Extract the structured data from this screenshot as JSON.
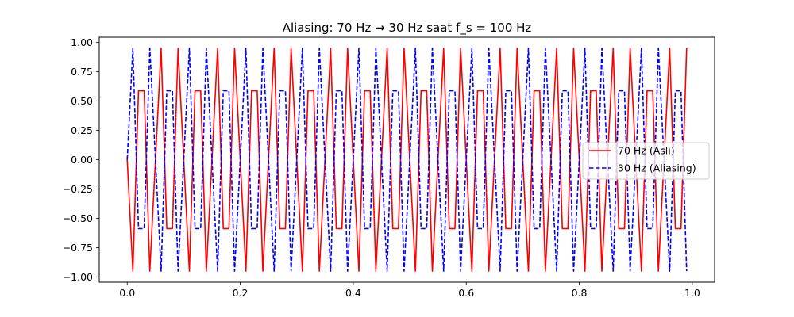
{
  "chart_data": {
    "type": "line",
    "title": "Aliasing: 70 Hz → 30 Hz saat f_s = 100 Hz",
    "xlabel": "",
    "ylabel": "",
    "xlim": [
      -0.0495,
      1.0395
    ],
    "ylim": [
      -1.045,
      1.045
    ],
    "x_ticks": [
      0.0,
      0.2,
      0.4,
      0.6,
      0.8,
      1.0
    ],
    "x_tick_labels": [
      "0.0",
      "0.2",
      "0.4",
      "0.6",
      "0.8",
      "1.0"
    ],
    "y_ticks": [
      1.0,
      0.75,
      0.5,
      0.25,
      0.0,
      -0.25,
      -0.5,
      -0.75,
      -1.0
    ],
    "y_tick_labels": [
      "1.00",
      "0.75",
      "0.50",
      "0.25",
      "0.00",
      "−0.25",
      "−0.50",
      "−0.75",
      "−1.00"
    ],
    "grid": false,
    "legend_position": "center-right",
    "x": [
      0.0,
      0.01,
      0.02,
      0.03,
      0.04,
      0.05,
      0.06,
      0.07,
      0.08,
      0.09,
      0.1,
      0.11,
      0.12,
      0.13,
      0.14,
      0.15,
      0.16,
      0.17,
      0.18,
      0.19,
      0.2,
      0.21,
      0.22,
      0.23,
      0.24,
      0.25,
      0.26,
      0.27,
      0.28,
      0.29,
      0.3,
      0.31,
      0.32,
      0.33,
      0.34,
      0.35,
      0.36,
      0.37,
      0.38,
      0.39,
      0.4,
      0.41,
      0.42,
      0.43,
      0.44,
      0.45,
      0.46,
      0.47,
      0.48,
      0.49,
      0.5,
      0.51,
      0.52,
      0.53,
      0.54,
      0.55,
      0.56,
      0.57,
      0.58,
      0.59,
      0.6,
      0.61,
      0.62,
      0.63,
      0.64,
      0.65,
      0.66,
      0.67,
      0.68,
      0.69,
      0.7,
      0.71,
      0.72,
      0.73,
      0.74,
      0.75,
      0.76,
      0.77,
      0.78,
      0.79,
      0.8,
      0.81,
      0.82,
      0.83,
      0.84,
      0.85,
      0.86,
      0.87,
      0.88,
      0.89,
      0.9,
      0.91,
      0.92,
      0.93,
      0.94,
      0.95,
      0.96,
      0.97,
      0.98,
      0.99
    ],
    "series": [
      {
        "name": "70 Hz (Asli)",
        "color": "#ff0000",
        "style": "solid",
        "values": [
          0.0,
          -0.951,
          0.588,
          0.588,
          -0.951,
          0.0,
          0.951,
          -0.588,
          -0.588,
          0.951,
          0.0,
          -0.951,
          0.588,
          0.588,
          -0.951,
          0.0,
          0.951,
          -0.588,
          -0.588,
          0.951,
          0.0,
          -0.951,
          0.588,
          0.588,
          -0.951,
          0.0,
          0.951,
          -0.588,
          -0.588,
          0.951,
          0.0,
          -0.951,
          0.588,
          0.588,
          -0.951,
          0.0,
          0.951,
          -0.588,
          -0.588,
          0.951,
          0.0,
          -0.951,
          0.588,
          0.588,
          -0.951,
          0.0,
          0.951,
          -0.588,
          -0.588,
          0.951,
          0.0,
          -0.951,
          0.588,
          0.588,
          -0.951,
          0.0,
          0.951,
          -0.588,
          -0.588,
          0.951,
          0.0,
          -0.951,
          0.588,
          0.588,
          -0.951,
          0.0,
          0.951,
          -0.588,
          -0.588,
          0.951,
          0.0,
          -0.951,
          0.588,
          0.588,
          -0.951,
          0.0,
          0.951,
          -0.588,
          -0.588,
          0.951,
          0.0,
          -0.951,
          0.588,
          0.588,
          -0.951,
          0.0,
          0.951,
          -0.588,
          -0.588,
          0.951,
          0.0,
          -0.951,
          0.588,
          0.588,
          -0.951,
          0.0,
          0.951,
          -0.588,
          -0.588,
          0.951
        ]
      },
      {
        "name": "30 Hz (Aliasing)",
        "color": "#0000ff",
        "style": "dashed",
        "values": [
          0.0,
          0.951,
          -0.588,
          -0.588,
          0.951,
          0.0,
          -0.951,
          0.588,
          0.588,
          -0.951,
          0.0,
          0.951,
          -0.588,
          -0.588,
          0.951,
          0.0,
          -0.951,
          0.588,
          0.588,
          -0.951,
          0.0,
          0.951,
          -0.588,
          -0.588,
          0.951,
          0.0,
          -0.951,
          0.588,
          0.588,
          -0.951,
          0.0,
          0.951,
          -0.588,
          -0.588,
          0.951,
          0.0,
          -0.951,
          0.588,
          0.588,
          -0.951,
          0.0,
          0.951,
          -0.588,
          -0.588,
          0.951,
          0.0,
          -0.951,
          0.588,
          0.588,
          -0.951,
          0.0,
          0.951,
          -0.588,
          -0.588,
          0.951,
          0.0,
          -0.951,
          0.588,
          0.588,
          -0.951,
          0.0,
          0.951,
          -0.588,
          -0.588,
          0.951,
          0.0,
          -0.951,
          0.588,
          0.588,
          -0.951,
          0.0,
          0.951,
          -0.588,
          -0.588,
          0.951,
          0.0,
          -0.951,
          0.588,
          0.588,
          -0.951,
          0.0,
          0.951,
          -0.588,
          -0.588,
          0.951,
          0.0,
          -0.951,
          0.588,
          0.588,
          -0.951,
          0.0,
          0.951,
          -0.588,
          -0.588,
          0.951,
          0.0,
          -0.951,
          0.588,
          0.588,
          -0.951
        ]
      }
    ]
  }
}
